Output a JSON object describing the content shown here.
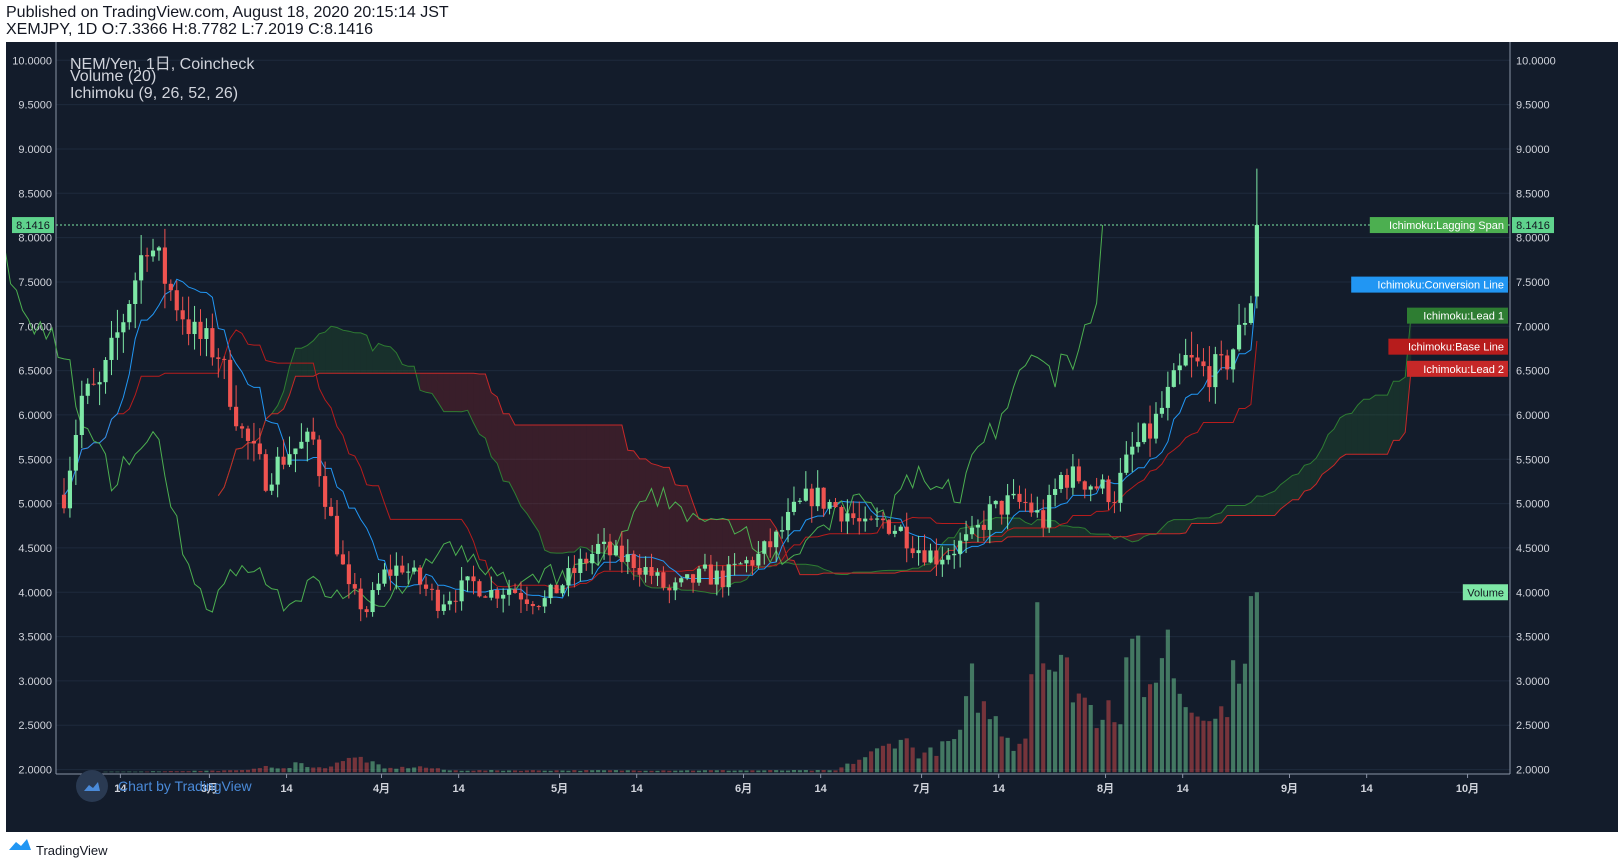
{
  "header": {
    "line1": "Published on TradingView.com, August 18, 2020 20:15:14 JST",
    "line2": "XEMJPY, 1D O:7.3366 H:8.7782 L:7.2019 C:8.1416"
  },
  "legend": {
    "symbol": "NEM/Yen, 1日, Coincheck",
    "volume": "Volume (20)",
    "ichimoku": "Ichimoku (9, 26, 52, 26)"
  },
  "watermark": "Chart by TradingView",
  "footer_brand": "TradingView",
  "colors": {
    "background": "#131c2b",
    "up": "#7ee8a6",
    "down": "#ef5350",
    "conversion": "#2196f3",
    "base": "#b71c1c",
    "lagging": "#4caf50",
    "lead1": "#2e7d32",
    "lead2": "#c62828",
    "price_label": "#5fd38d"
  },
  "chart_data": {
    "type": "candlestick",
    "symbol": "XEMJPY",
    "y_ticks": [
      "10.0000",
      "9.5000",
      "9.0000",
      "8.5000",
      "8.0000",
      "7.5000",
      "7.0000",
      "6.5000",
      "6.0000",
      "5.5000",
      "5.0000",
      "4.5000",
      "4.0000",
      "3.5000",
      "3.0000",
      "2.5000",
      "2.0000"
    ],
    "ylim": [
      1.95,
      10.15
    ],
    "x_ticks": [
      "14",
      "3月",
      "14",
      "4月",
      "14",
      "5月",
      "14",
      "6月",
      "14",
      "7月",
      "14",
      "8月",
      "14",
      "9月",
      "14",
      "10月"
    ],
    "current_price": "8.1416",
    "series_labels": [
      {
        "text": "Ichimoku:Lagging Span",
        "color": "#4caf50",
        "value": 8.1416
      },
      {
        "text": "Ichimoku:Conversion Line",
        "color": "#2196f3",
        "value": 7.47
      },
      {
        "text": "Ichimoku:Lead 1",
        "color": "#2e7d32",
        "value": 7.12
      },
      {
        "text": "Ichimoku:Base Line",
        "color": "#b71c1c",
        "value": 6.77
      },
      {
        "text": "Ichimoku:Lead 2",
        "color": "#c62828",
        "value": 6.52
      },
      {
        "text": "Volume",
        "color": "#7ee8a6",
        "value": 4.0
      }
    ],
    "close_anchors": [
      [
        0,
        5.1
      ],
      [
        3,
        6.2
      ],
      [
        6,
        6.3
      ],
      [
        10,
        7.1
      ],
      [
        14,
        8.0
      ],
      [
        18,
        7.4
      ],
      [
        22,
        6.9
      ],
      [
        26,
        6.7
      ],
      [
        30,
        5.8
      ],
      [
        34,
        5.3
      ],
      [
        38,
        5.6
      ],
      [
        42,
        5.7
      ],
      [
        45,
        4.8
      ],
      [
        48,
        4.0
      ],
      [
        51,
        3.8
      ],
      [
        54,
        4.2
      ],
      [
        57,
        4.3
      ],
      [
        60,
        4.1
      ],
      [
        63,
        3.9
      ],
      [
        66,
        4.0
      ],
      [
        69,
        4.1
      ],
      [
        72,
        4.0
      ],
      [
        75,
        4.05
      ],
      [
        78,
        3.95
      ],
      [
        81,
        3.9
      ],
      [
        84,
        4.1
      ],
      [
        87,
        4.3
      ],
      [
        90,
        4.5
      ],
      [
        93,
        4.4
      ],
      [
        96,
        4.35
      ],
      [
        99,
        4.2
      ],
      [
        102,
        4.0
      ],
      [
        105,
        4.1
      ],
      [
        108,
        4.2
      ],
      [
        111,
        4.15
      ],
      [
        114,
        4.3
      ],
      [
        117,
        4.4
      ],
      [
        120,
        4.6
      ],
      [
        123,
        4.9
      ],
      [
        126,
        5.1
      ],
      [
        129,
        5.0
      ],
      [
        132,
        4.9
      ],
      [
        135,
        4.7
      ],
      [
        138,
        4.8
      ],
      [
        141,
        4.7
      ],
      [
        144,
        4.5
      ],
      [
        147,
        4.4
      ],
      [
        150,
        4.5
      ],
      [
        153,
        4.6
      ],
      [
        156,
        4.9
      ],
      [
        159,
        5.0
      ],
      [
        162,
        5.0
      ],
      [
        165,
        4.8
      ],
      [
        168,
        5.3
      ],
      [
        171,
        5.3
      ],
      [
        174,
        5.2
      ],
      [
        177,
        5.1
      ],
      [
        180,
        5.6
      ],
      [
        183,
        5.8
      ],
      [
        186,
        6.2
      ],
      [
        189,
        6.6
      ],
      [
        192,
        6.5
      ],
      [
        195,
        6.5
      ],
      [
        198,
        6.9
      ],
      [
        200,
        7.34
      ],
      [
        201,
        8.14
      ]
    ],
    "volume_anchors": [
      [
        0,
        0
      ],
      [
        30,
        0.01
      ],
      [
        33,
        0.03
      ],
      [
        38,
        0.02
      ],
      [
        39,
        0.05
      ],
      [
        44,
        0.02
      ],
      [
        46,
        0.06
      ],
      [
        50,
        0.08
      ],
      [
        54,
        0.02
      ],
      [
        60,
        0.03
      ],
      [
        65,
        0.01
      ],
      [
        79,
        0.01
      ],
      [
        100,
        0.01
      ],
      [
        114,
        0.01
      ],
      [
        130,
        0.01
      ],
      [
        134,
        0.07
      ],
      [
        139,
        0.15
      ],
      [
        141,
        0.2
      ],
      [
        144,
        0.1
      ],
      [
        147,
        0.12
      ],
      [
        151,
        0.2
      ],
      [
        153,
        0.5
      ],
      [
        155,
        0.35
      ],
      [
        158,
        0.25
      ],
      [
        160,
        0.15
      ],
      [
        162,
        0.2
      ],
      [
        164,
        1.0
      ],
      [
        166,
        0.6
      ],
      [
        169,
        0.55
      ],
      [
        171,
        0.45
      ],
      [
        174,
        0.3
      ],
      [
        176,
        0.42
      ],
      [
        178,
        0.3
      ],
      [
        180,
        0.88
      ],
      [
        182,
        0.35
      ],
      [
        184,
        0.6
      ],
      [
        186,
        0.72
      ],
      [
        188,
        0.45
      ],
      [
        190,
        0.35
      ],
      [
        192,
        0.38
      ],
      [
        194,
        0.28
      ],
      [
        196,
        0.4
      ],
      [
        198,
        0.62
      ],
      [
        200,
        0.88
      ],
      [
        201,
        1.0
      ]
    ],
    "x_label_positions": [
      [
        "14",
        9.5
      ],
      [
        "3月",
        24.5
      ],
      [
        "14",
        37.5
      ],
      [
        "4月",
        53.5
      ],
      [
        "14",
        66.5
      ],
      [
        "5月",
        83.5
      ],
      [
        "14",
        96.5
      ],
      [
        "6月",
        114.5
      ],
      [
        "14",
        127.5
      ],
      [
        "7月",
        144.5
      ],
      [
        "14",
        157.5
      ],
      [
        "8月",
        175.5
      ],
      [
        "14",
        188.5
      ],
      [
        "9月",
        206.5
      ],
      [
        "14",
        219.5
      ],
      [
        "10月",
        236.5
      ]
    ],
    "bar_count": 202,
    "bar_space": 245,
    "seed": 7
  }
}
